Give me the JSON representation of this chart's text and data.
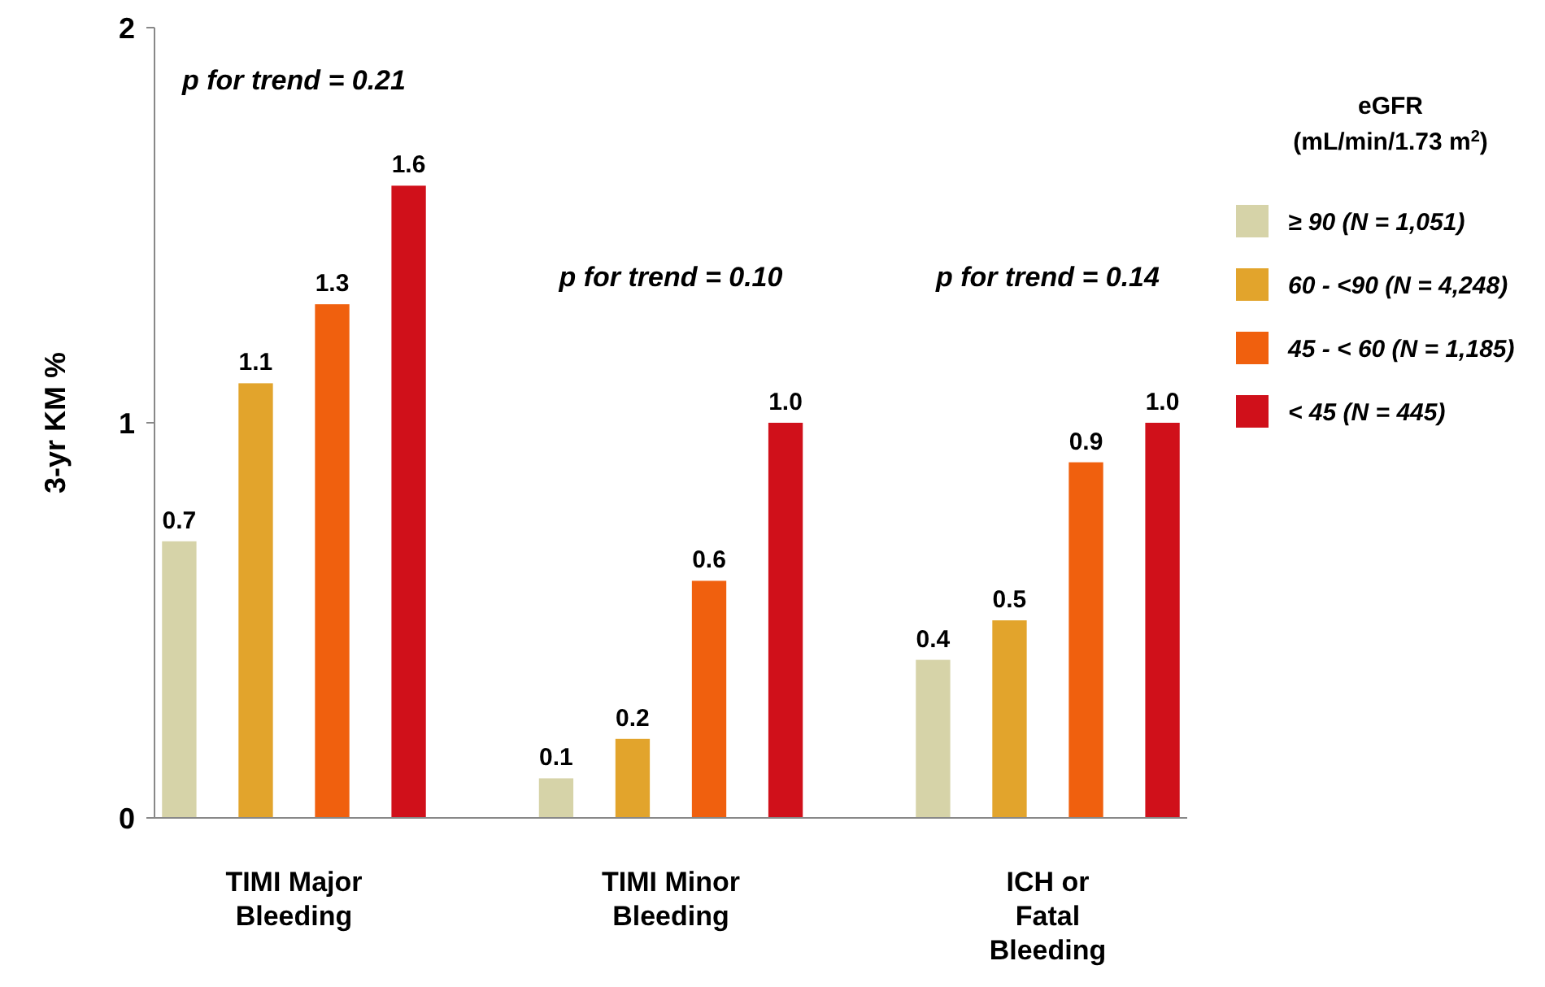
{
  "chart_data": {
    "type": "bar",
    "ylabel": "3-yr KM %",
    "categories": [
      "TIMI Major Bleeding",
      "TIMI Minor Bleeding",
      "ICH or Fatal Bleeding"
    ],
    "series": [
      {
        "name": "≥ 90 (N = 1,051)",
        "color": "#d6d3a8",
        "values": [
          0.7,
          0.1,
          0.4
        ],
        "value_labels": [
          "0.7",
          "0.1",
          "0.4"
        ]
      },
      {
        "name": "60 - <90 (N = 4,248)",
        "color": "#e2a42c",
        "values": [
          1.1,
          0.2,
          0.5
        ],
        "value_labels": [
          "1.1",
          "0.2",
          "0.5"
        ]
      },
      {
        "name": "45 - < 60 (N = 1,185)",
        "color": "#f0600e",
        "values": [
          1.3,
          0.6,
          0.9
        ],
        "value_labels": [
          "1.3",
          "0.6",
          "0.9"
        ]
      },
      {
        "name": "< 45 (N = 445)",
        "color": "#d0101a",
        "values": [
          1.6,
          1.0,
          1.0
        ],
        "value_labels": [
          "1.6",
          "1.0",
          "1.0"
        ]
      }
    ],
    "ylim": [
      0,
      2
    ],
    "yticks": [
      0,
      1,
      2
    ],
    "legend": "right",
    "legend_title": "eGFR\n(mL/min/1.73 m$^{2}$)",
    "annotations": [
      "p for trend = 0.21",
      "p for trend = 0.10",
      "p for trend = 0.14"
    ]
  }
}
